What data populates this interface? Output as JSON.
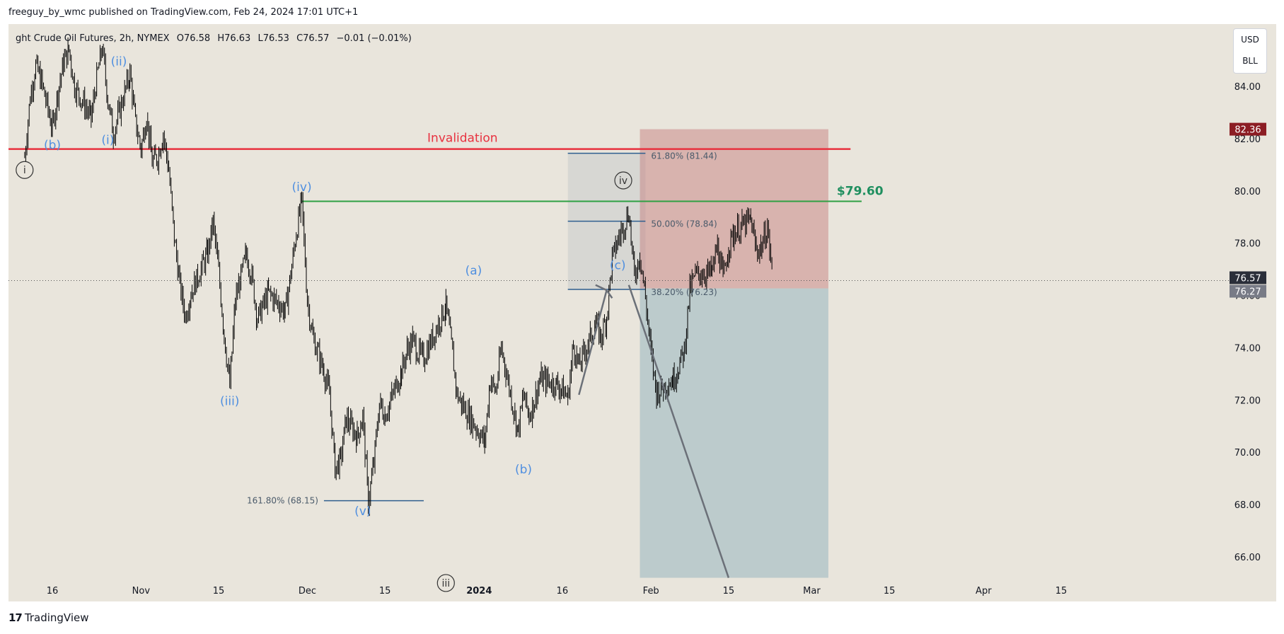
{
  "header": {
    "publisher": "freeguy_by_wmc published on TradingView.com, Feb 24, 2024 17:01 UTC+1"
  },
  "legend": {
    "symbol": "ght Crude Oil Futures, 2h, NYMEX",
    "open": "O76.58",
    "high": "H76.63",
    "low": "L76.53",
    "close": "C76.57",
    "change": "−0.01 (−0.01%)"
  },
  "units": {
    "currency": "USD",
    "unit": "BLL"
  },
  "footer": {
    "brand": "TradingView"
  },
  "colors": {
    "background": "#e9e5dc",
    "candle": "#000000",
    "invalidation": "#e8313f",
    "target": "#2ea043",
    "wave_label": "#4f8fe0",
    "stop_zone": "#c47676",
    "target_zone": "#6a9aae",
    "fib_line": "#2f5f8f"
  },
  "chart_data": {
    "type": "line",
    "title": "ght Crude Oil Futures, 2h, NYMEX",
    "y_axis": {
      "range": [
        65,
        85
      ],
      "ticks": [
        "84.00",
        "82.00",
        "80.00",
        "78.00",
        "76.00",
        "74.00",
        "72.00",
        "70.00",
        "68.00",
        "66.00"
      ],
      "position": "right"
    },
    "x_axis": {
      "range": [
        "2023-10-11",
        "2024-04-20"
      ],
      "ticks": [
        {
          "date": "2023-10-16",
          "label": "16",
          "bold": false
        },
        {
          "date": "2023-11-01",
          "label": "Nov",
          "bold": false
        },
        {
          "date": "2023-11-15",
          "label": "15",
          "bold": false
        },
        {
          "date": "2023-12-01",
          "label": "Dec",
          "bold": false
        },
        {
          "date": "2023-12-15",
          "label": "15",
          "bold": false
        },
        {
          "date": "2024-01-01",
          "label": "2024",
          "bold": true
        },
        {
          "date": "2024-01-16",
          "label": "16",
          "bold": false
        },
        {
          "date": "2024-02-01",
          "label": "Feb",
          "bold": false
        },
        {
          "date": "2024-02-15",
          "label": "15",
          "bold": false
        },
        {
          "date": "2024-03-01",
          "label": "Mar",
          "bold": false
        },
        {
          "date": "2024-03-15",
          "label": "15",
          "bold": false
        },
        {
          "date": "2024-04-01",
          "label": "Apr",
          "bold": false
        },
        {
          "date": "2024-04-15",
          "label": "15",
          "bold": false
        }
      ]
    },
    "series": [
      {
        "price_path": [
          [
            "2023-10-11",
            81.3
          ],
          [
            "2023-10-12",
            83.6
          ],
          [
            "2023-10-13",
            84.8
          ],
          [
            "2023-10-14",
            84.2
          ],
          [
            "2023-10-16",
            82.4
          ],
          [
            "2023-10-17",
            83.8
          ],
          [
            "2023-10-18",
            84.9
          ],
          [
            "2023-10-19",
            85.4
          ],
          [
            "2023-10-20",
            84.0
          ],
          [
            "2023-10-23",
            82.8
          ],
          [
            "2023-10-24",
            84.3
          ],
          [
            "2023-10-25",
            85.5
          ],
          [
            "2023-10-26",
            83.5
          ],
          [
            "2023-10-27",
            82.2
          ],
          [
            "2023-10-30",
            84.5
          ],
          [
            "2023-10-31",
            82.6
          ],
          [
            "2023-11-01",
            81.6
          ],
          [
            "2023-11-02",
            82.9
          ],
          [
            "2023-11-03",
            81.1
          ],
          [
            "2023-11-04",
            81.3
          ],
          [
            "2023-11-05",
            82.2
          ],
          [
            "2023-11-06",
            80.8
          ],
          [
            "2023-11-07",
            78.2
          ],
          [
            "2023-11-08",
            76.4
          ],
          [
            "2023-11-09",
            75.2
          ],
          [
            "2023-11-10",
            76.1
          ],
          [
            "2023-11-13",
            77.6
          ],
          [
            "2023-11-14",
            78.8
          ],
          [
            "2023-11-15",
            76.9
          ],
          [
            "2023-11-16",
            74.5
          ],
          [
            "2023-11-17",
            72.5
          ],
          [
            "2023-11-18",
            75.8
          ],
          [
            "2023-11-20",
            77.6
          ],
          [
            "2023-11-21",
            76.7
          ],
          [
            "2023-11-22",
            75.1
          ],
          [
            "2023-11-24",
            76.1
          ],
          [
            "2023-11-27",
            75.4
          ],
          [
            "2023-11-28",
            76.8
          ],
          [
            "2023-11-29",
            78.4
          ],
          [
            "2023-11-30",
            79.6
          ],
          [
            "2023-12-01",
            75.8
          ],
          [
            "2023-12-02",
            74.4
          ],
          [
            "2023-12-04",
            73.1
          ],
          [
            "2023-12-05",
            72.2
          ],
          [
            "2023-12-06",
            69.4
          ],
          [
            "2023-12-07",
            69.7
          ],
          [
            "2023-12-08",
            71.3
          ],
          [
            "2023-12-10",
            70.6
          ],
          [
            "2023-12-11",
            71.4
          ],
          [
            "2023-12-12",
            68.1
          ],
          [
            "2023-12-13",
            69.6
          ],
          [
            "2023-12-14",
            71.9
          ],
          [
            "2023-12-15",
            71.4
          ],
          [
            "2023-12-18",
            73.1
          ],
          [
            "2023-12-19",
            73.9
          ],
          [
            "2023-12-20",
            74.3
          ],
          [
            "2023-12-21",
            73.8
          ],
          [
            "2023-12-22",
            73.6
          ],
          [
            "2023-12-26",
            75.6
          ],
          [
            "2023-12-27",
            74.1
          ],
          [
            "2023-12-28",
            72.2
          ],
          [
            "2023-12-29",
            71.8
          ],
          [
            "2024-01-02",
            70.4
          ],
          [
            "2024-01-03",
            72.8
          ],
          [
            "2024-01-04",
            72.3
          ],
          [
            "2024-01-05",
            74.0
          ],
          [
            "2024-01-08",
            70.8
          ],
          [
            "2024-01-09",
            72.2
          ],
          [
            "2024-01-10",
            71.4
          ],
          [
            "2024-01-11",
            72.0
          ],
          [
            "2024-01-12",
            72.8
          ],
          [
            "2024-01-15",
            72.6
          ],
          [
            "2024-01-16",
            72.4
          ],
          [
            "2024-01-17",
            72.1
          ],
          [
            "2024-01-18",
            74.1
          ],
          [
            "2024-01-19",
            73.3
          ],
          [
            "2024-01-22",
            74.9
          ],
          [
            "2024-01-23",
            74.4
          ],
          [
            "2024-01-24",
            75.2
          ],
          [
            "2024-01-25",
            77.4
          ],
          [
            "2024-01-26",
            78.1
          ],
          [
            "2024-01-28",
            79.2
          ],
          [
            "2024-01-29",
            76.7
          ],
          [
            "2024-01-30",
            77.6
          ],
          [
            "2024-01-31",
            75.9
          ],
          [
            "2024-02-01",
            73.8
          ],
          [
            "2024-02-02",
            72.3
          ],
          [
            "2024-02-05",
            72.8
          ],
          [
            "2024-02-06",
            73.3
          ],
          [
            "2024-02-07",
            73.9
          ],
          [
            "2024-02-08",
            76.2
          ],
          [
            "2024-02-09",
            76.8
          ],
          [
            "2024-02-12",
            76.9
          ],
          [
            "2024-02-13",
            77.9
          ],
          [
            "2024-02-14",
            76.6
          ],
          [
            "2024-02-15",
            77.9
          ],
          [
            "2024-02-16",
            78.4
          ],
          [
            "2024-02-19",
            78.9
          ],
          [
            "2024-02-20",
            77.7
          ],
          [
            "2024-02-21",
            77.9
          ],
          [
            "2024-02-22",
            78.6
          ],
          [
            "2024-02-23",
            76.6
          ]
        ]
      }
    ],
    "last_price": "76.57",
    "price_badges": [
      {
        "value": "82.36",
        "color": "#8c1d24",
        "price": 82.36
      },
      {
        "value": "76.57",
        "color": "#2a2e39",
        "price": 76.57
      },
      {
        "value": "76.27",
        "color": "#787b86",
        "price": 76.27
      }
    ],
    "levels": [
      {
        "name": "invalidation",
        "label": "Invalidation",
        "price": 81.6
      },
      {
        "name": "target",
        "label": "$79.60",
        "price": 79.6
      }
    ],
    "fib_levels": [
      {
        "label": "61.80% (81.44)",
        "price": 81.44
      },
      {
        "label": "50.00% (78.84)",
        "price": 78.84
      },
      {
        "label": "38.20% (76.23)",
        "price": 76.23
      },
      {
        "label": "161.80% (68.15)",
        "price": 68.15
      }
    ],
    "wave_labels": [
      {
        "text": "(b)",
        "date": "2023-10-16",
        "price": 81.6,
        "style": "paren"
      },
      {
        "text": "(i)",
        "date": "2023-10-26",
        "price": 81.8,
        "style": "paren"
      },
      {
        "text": "(ii)",
        "date": "2023-10-28",
        "price": 84.8,
        "style": "paren"
      },
      {
        "text": "(iv)",
        "date": "2023-11-30",
        "price": 80.0,
        "style": "paren"
      },
      {
        "text": "(iii)",
        "date": "2023-11-17",
        "price": 71.8,
        "style": "paren"
      },
      {
        "text": "(v)",
        "date": "2023-12-11",
        "price": 67.6,
        "style": "paren"
      },
      {
        "text": "(a)",
        "date": "2023-12-31",
        "price": 76.8,
        "style": "paren"
      },
      {
        "text": "(b)",
        "date": "2024-01-09",
        "price": 69.2,
        "style": "paren"
      },
      {
        "text": "(c)",
        "date": "2024-01-26",
        "price": 77.0,
        "style": "paren"
      },
      {
        "text": "iv",
        "date": "2024-01-27",
        "price": 80.4,
        "style": "circle"
      },
      {
        "text": "iii",
        "date": "2023-12-26",
        "price": 65.0,
        "style": "circle"
      },
      {
        "text": "i",
        "date": "2023-10-11",
        "price": 80.8,
        "style": "circle"
      }
    ]
  }
}
